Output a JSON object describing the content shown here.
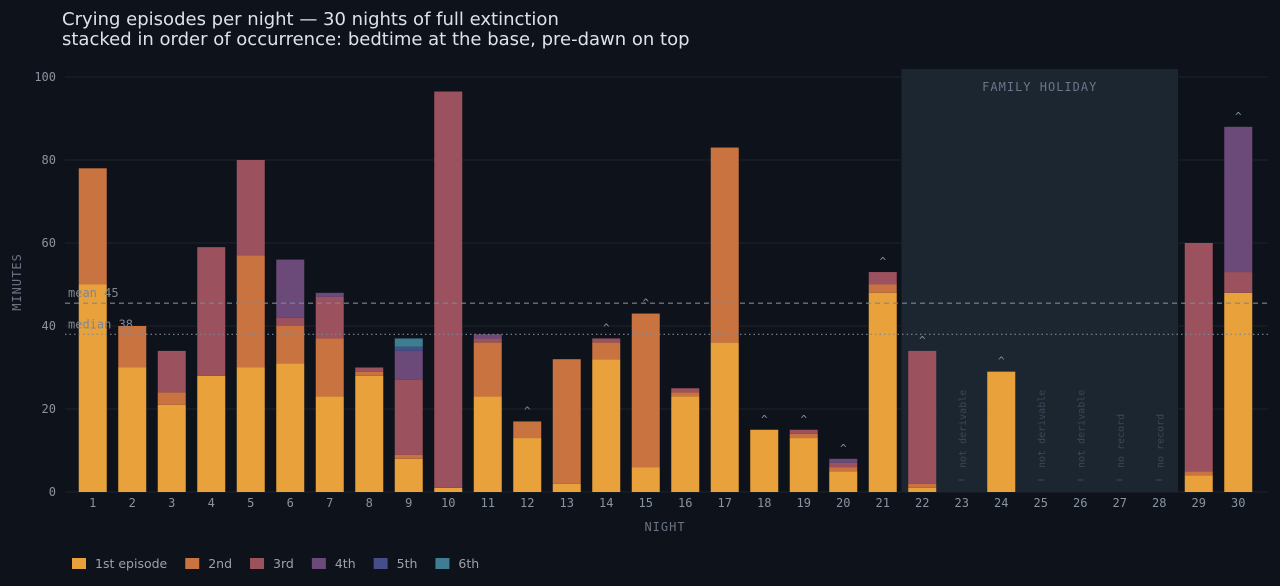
{
  "chart_data": {
    "type": "bar",
    "stacked": true,
    "title": "Crying episodes per night — 30 nights of full extinction",
    "subtitle": "stacked in order of occurrence: bedtime at the base, pre-dawn on top",
    "xlabel": "NIGHT",
    "ylabel": "MINUTES",
    "ylim": [
      0,
      100
    ],
    "yticks": [
      0,
      20,
      40,
      60,
      80,
      100
    ],
    "grid": true,
    "legend_position": "bottom-left",
    "categories": [
      "1",
      "2",
      "3",
      "4",
      "5",
      "6",
      "7",
      "8",
      "9",
      "10",
      "11",
      "12",
      "13",
      "14",
      "15",
      "16",
      "17",
      "18",
      "19",
      "20",
      "21",
      "22",
      "23",
      "24",
      "25",
      "26",
      "27",
      "28",
      "29",
      "30"
    ],
    "series": [
      {
        "name": "1st episode",
        "color": "#e9a23b",
        "values": [
          50,
          30,
          21,
          28,
          30,
          31,
          23,
          28,
          8,
          1,
          23,
          13,
          2,
          32,
          6,
          23,
          36,
          15,
          13,
          5,
          48,
          1,
          0,
          29,
          0,
          0,
          0,
          0,
          4,
          48
        ]
      },
      {
        "name": "2nd",
        "color": "#c87340",
        "values": [
          28,
          10,
          3,
          0,
          27,
          9,
          14,
          1,
          1,
          0,
          13,
          4,
          30,
          4,
          37,
          1,
          47,
          0,
          1,
          1,
          2,
          1,
          0,
          0,
          0,
          0,
          0,
          0,
          1,
          0
        ]
      },
      {
        "name": "3rd",
        "color": "#9b525e",
        "values": [
          0,
          0,
          10,
          31,
          23,
          2,
          10,
          1,
          18,
          95.5,
          1,
          0,
          0,
          1,
          0,
          1,
          0,
          0,
          1,
          1,
          3,
          32,
          0,
          0,
          0,
          0,
          0,
          0,
          55,
          5
        ]
      },
      {
        "name": "4th",
        "color": "#6b4a79",
        "values": [
          0,
          0,
          0,
          0,
          0,
          14,
          1,
          0,
          7,
          0,
          1,
          0,
          0,
          0,
          0,
          0,
          0,
          0,
          0,
          1,
          0,
          0,
          0,
          0,
          0,
          0,
          0,
          0,
          0,
          35
        ]
      },
      {
        "name": "5th",
        "color": "#454e87",
        "values": [
          0,
          0,
          0,
          0,
          0,
          0,
          0,
          0,
          1,
          0,
          0,
          0,
          0,
          0,
          0,
          0,
          0,
          0,
          0,
          0,
          0,
          0,
          0,
          0,
          0,
          0,
          0,
          0,
          0,
          0
        ]
      },
      {
        "name": "6th",
        "color": "#3f7d93",
        "values": [
          0,
          0,
          0,
          0,
          0,
          0,
          0,
          0,
          2,
          0,
          0,
          0,
          0,
          0,
          0,
          0,
          0,
          0,
          0,
          0,
          0,
          0,
          0,
          0,
          0,
          0,
          0,
          0,
          0,
          0
        ]
      }
    ],
    "carets": [
      "12",
      "14",
      "15",
      "18",
      "19",
      "20",
      "21",
      "22",
      "24",
      "30"
    ],
    "caret_glyph": "^",
    "reference_lines": [
      {
        "label": "mean 45",
        "value": 45.5,
        "style": "dashed"
      },
      {
        "label": "median 38",
        "value": 38,
        "style": "dotted"
      }
    ],
    "shaded_region": {
      "label": "FAMILY HOLIDAY",
      "from": "22",
      "to": "28"
    },
    "missing_notes": [
      {
        "category": "23",
        "text": "not derivable"
      },
      {
        "category": "25",
        "text": "not derivable"
      },
      {
        "category": "26",
        "text": "not derivable"
      },
      {
        "category": "27",
        "text": "no record"
      },
      {
        "category": "28",
        "text": "no record"
      }
    ],
    "colors": {
      "background": "#0e121a",
      "grid": "#1c222c",
      "shaded_region": "#1b2631",
      "reference": "#7d8694"
    }
  }
}
